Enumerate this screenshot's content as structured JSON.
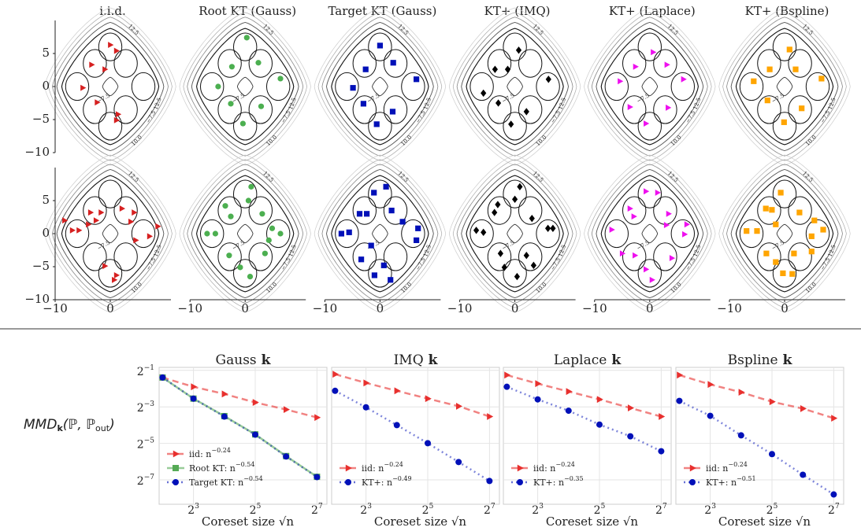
{
  "chart_data": [
    {
      "type": "scatter",
      "xlim": [
        -10,
        11
      ],
      "ylim": [
        -10,
        10
      ],
      "xticks": [
        {
          "value": -10,
          "label": "−10"
        },
        0
      ],
      "yticks": [
        5,
        0,
        {
          "value": -5,
          "label": "−5"
        },
        {
          "value": -10,
          "label": "−10"
        }
      ],
      "contour_labels": [
        "−7.5",
        "10.0",
        "12.5"
      ],
      "panels": [
        {
          "title": "i.i.d.",
          "color": "#d62020",
          "marker": "triangle",
          "rows": [
            {
              "x": [
                0,
                1.1,
                -3.4,
                -1,
                -5,
                -2.4,
                1.4,
                1.1
              ],
              "y": [
                6.3,
                5.4,
                3.3,
                2.6,
                -0.2,
                -2.4,
                -4.2,
                -5.1
              ]
            },
            {
              "x": [
                -8.3,
                -6.9,
                -5.7,
                -3.6,
                -2.6,
                -1.7,
                2.1,
                4.3,
                3.7,
                7.1,
                4.6,
                8.6,
                -1,
                1.1,
                0.7,
                -4
              ],
              "y": [
                2,
                0.5,
                0.5,
                3.2,
                2,
                3.2,
                3.8,
                3.2,
                1.8,
                -0.4,
                -1,
                1.1,
                -4.9,
                -6.3,
                -7,
                1.4
              ]
            }
          ]
        },
        {
          "title": "Root KT (Gauss)",
          "color": "#4caf50",
          "marker": "circle",
          "rows": [
            {
              "x": [
                0.3,
                2.4,
                -2.4,
                6.4,
                -4.9,
                -2.6,
                2.9,
                -0.4
              ],
              "y": [
                7.4,
                3.6,
                3,
                1.2,
                0,
                -2.6,
                -3,
                -5.6
              ]
            },
            {
              "x": [
                1.1,
                0.6,
                -3.6,
                -2.6,
                3.1,
                -6.9,
                -5.4,
                4.9,
                6.4,
                4.3,
                -2.9,
                3.6,
                -0.9,
                0.9
              ],
              "y": [
                7.1,
                5,
                4.2,
                2.6,
                3,
                0,
                0,
                0.8,
                0,
                -1,
                -3.3,
                -3,
                -5.1,
                -6.5
              ]
            }
          ]
        },
        {
          "title": "Target KT (Gauss)",
          "color": "#0010b8",
          "marker": "square",
          "rows": [
            {
              "x": [
                0,
                2.4,
                -2.6,
                6.6,
                -4.9,
                -3,
                2.3,
                -0.6
              ],
              "y": [
                6.2,
                3.6,
                2.6,
                1.1,
                -0.2,
                -2.6,
                -3.8,
                -5.7
              ]
            },
            {
              "x": [
                1.1,
                -1.1,
                -3.7,
                -2.4,
                2.1,
                -7,
                -5.6,
                4.1,
                6.9,
                6.6,
                -1.6,
                -3.4,
                0.7,
                -1,
                1.9
              ],
              "y": [
                7.1,
                6.2,
                3,
                3,
                3.5,
                0,
                0.2,
                1.8,
                0.8,
                -1,
                -1.8,
                -3.9,
                -4.8,
                -6.3,
                -7
              ]
            }
          ]
        },
        {
          "title": "KT+ (IMQ)",
          "color": "#000000",
          "marker": "diamond",
          "rows": [
            {
              "x": [
                0.7,
                -3.6,
                -1.3,
                6.1,
                -5.7,
                -3,
                2.1,
                -0.7
              ],
              "y": [
                5.5,
                2.6,
                2.6,
                1.1,
                -1,
                -2.5,
                -3.8,
                -5.7
              ]
            },
            {
              "x": [
                0.9,
                0,
                -3.1,
                -3.7,
                3.1,
                -7,
                -5.7,
                6,
                6.9,
                -2.6,
                2.1,
                3.4,
                -1.9,
                0.4
              ],
              "y": [
                7.1,
                5.2,
                4.4,
                3.2,
                2.3,
                0.5,
                0.2,
                0.8,
                0.8,
                -3,
                -3.3,
                -4.8,
                -5.1,
                -6.5
              ]
            }
          ]
        },
        {
          "title": "KT+ (Laplace)",
          "color": "#ee10ee",
          "marker": "triangle",
          "rows": [
            {
              "x": [
                0.6,
                3.1,
                -5.4,
                6.1,
                -2.6,
                -3.6,
                3.3,
                -0.7
              ],
              "y": [
                5.2,
                3.3,
                0.8,
                1.1,
                3,
                -3.1,
                -3.2,
                -5.6
              ]
            },
            {
              "x": [
                -0.7,
                1.4,
                -3.6,
                -2.9,
                3.4,
                -6.9,
                3,
                6.7,
                6.3,
                -5,
                4,
                -0.7,
                0.4,
                -2.7
              ],
              "y": [
                6.4,
                6.2,
                3.8,
                2.6,
                3,
                0.6,
                1.3,
                1.4,
                -0.1,
                -3,
                -3.7,
                -5.4,
                -7,
                -3.3
              ]
            }
          ]
        },
        {
          "title": "KT+ (Bspline)",
          "color": "#ffa500",
          "marker": "square",
          "rows": [
            {
              "x": [
                0.9,
                -2.7,
                2,
                -5.6,
                6.7,
                -3.1,
                3.1,
                -0.1
              ],
              "y": [
                5.6,
                2.6,
                2.6,
                0.8,
                1.2,
                -2.1,
                -3.3,
                -5.4
              ]
            },
            {
              "x": [
                -0.7,
                -3.4,
                -2.3,
                2.7,
                -1.6,
                -6.9,
                -5,
                5.4,
                7,
                4.9,
                -3.3,
                1.7,
                4.9,
                -1.6,
                -0.3,
                1.4
              ],
              "y": [
                6.2,
                3.8,
                3.6,
                3.2,
                1.4,
                0.4,
                0.4,
                2,
                0.6,
                -0.4,
                -3,
                -3,
                -2.7,
                -4.3,
                -6,
                -6.1
              ]
            }
          ]
        }
      ]
    },
    {
      "type": "line",
      "ylabel": [
        "MMD",
        "k",
        "(ℙ, ℙ",
        "out",
        ")"
      ],
      "xlabel": "Coreset size √n",
      "kernel_symbol": "k",
      "log_base": 2,
      "grid": true,
      "legend": "lower left",
      "x": [
        4,
        8,
        16,
        32,
        64,
        128
      ],
      "xlim": [
        3.7,
        160
      ],
      "ylim": [
        0.0031,
        0.56
      ],
      "xticks": [
        {
          "value": 8,
          "label": [
            "2",
            "3"
          ]
        },
        {
          "value": 32,
          "label": [
            "2",
            "5"
          ]
        },
        {
          "value": 128,
          "label": [
            "2",
            "7"
          ]
        }
      ],
      "yticks": [
        {
          "value": 0.5,
          "label": [
            "2",
            "−1"
          ]
        },
        {
          "value": 0.125,
          "label": [
            "2",
            "−3"
          ]
        },
        {
          "value": 0.03125,
          "label": [
            "2",
            "−5"
          ]
        },
        {
          "value": 0.0078125,
          "label": [
            "2",
            "−7"
          ]
        }
      ],
      "panels": [
        {
          "title": "Gauss",
          "series": [
            {
              "name": "iid: n",
              "name_exponent": "−0.24",
              "color": "#e8302e",
              "marker": "triangle",
              "dash": "dashed",
              "values": [
                0.381,
                0.268,
                0.204,
                0.148,
                0.113,
                0.0835
              ]
            },
            {
              "name": "Root KT: n",
              "name_exponent": "−0.54",
              "color": "#55aa55",
              "marker": "square",
              "dash": "solid",
              "values": [
                0.381,
                0.171,
                0.088,
                0.044,
                0.0193,
                0.0088
              ]
            },
            {
              "name": "Target KT: n",
              "name_exponent": "−0.54",
              "color": "#0010b8",
              "marker": "circle",
              "dash": "dotted",
              "values": [
                0.381,
                0.171,
                0.0866,
                0.0436,
                0.019,
                0.0087
              ]
            }
          ]
        },
        {
          "title": "IMQ",
          "series": [
            {
              "name": "iid: n",
              "name_exponent": "−0.24",
              "color": "#e8302e",
              "marker": "triangle",
              "dash": "dashed",
              "values": [
                0.432,
                0.31,
                0.23,
                0.171,
                0.128,
                0.0866
              ]
            },
            {
              "name": "KT+: n",
              "name_exponent": "−0.49",
              "color": "#0010b8",
              "marker": "circle",
              "dash": "dotted",
              "values": [
                0.23,
                0.123,
                0.0625,
                0.0315,
                0.0154,
                0.0075
              ]
            }
          ]
        },
        {
          "title": "Laplace",
          "series": [
            {
              "name": "iid: n",
              "name_exponent": "−0.24",
              "color": "#e8302e",
              "marker": "triangle",
              "dash": "dashed",
              "values": [
                0.418,
                0.302,
                0.224,
                0.166,
                0.12,
                0.0866
              ]
            },
            {
              "name": "KT+: n",
              "name_exponent": "−0.35",
              "color": "#0010b8",
              "marker": "circle",
              "dash": "dotted",
              "values": [
                0.268,
                0.166,
                0.108,
                0.0638,
                0.0409,
                0.0232
              ]
            }
          ]
        },
        {
          "title": "Bspline",
          "series": [
            {
              "name": "iid: n",
              "name_exponent": "−0.24",
              "color": "#e8302e",
              "marker": "triangle",
              "dash": "dashed",
              "values": [
                0.418,
                0.293,
                0.218,
                0.152,
                0.117,
                0.0813
              ]
            },
            {
              "name": "KT+: n",
              "name_exponent": "−0.51",
              "color": "#0010b8",
              "marker": "circle",
              "dash": "dotted",
              "values": [
                0.157,
                0.089,
                0.0424,
                0.0208,
                0.0095,
                0.0045
              ]
            }
          ]
        }
      ]
    }
  ]
}
